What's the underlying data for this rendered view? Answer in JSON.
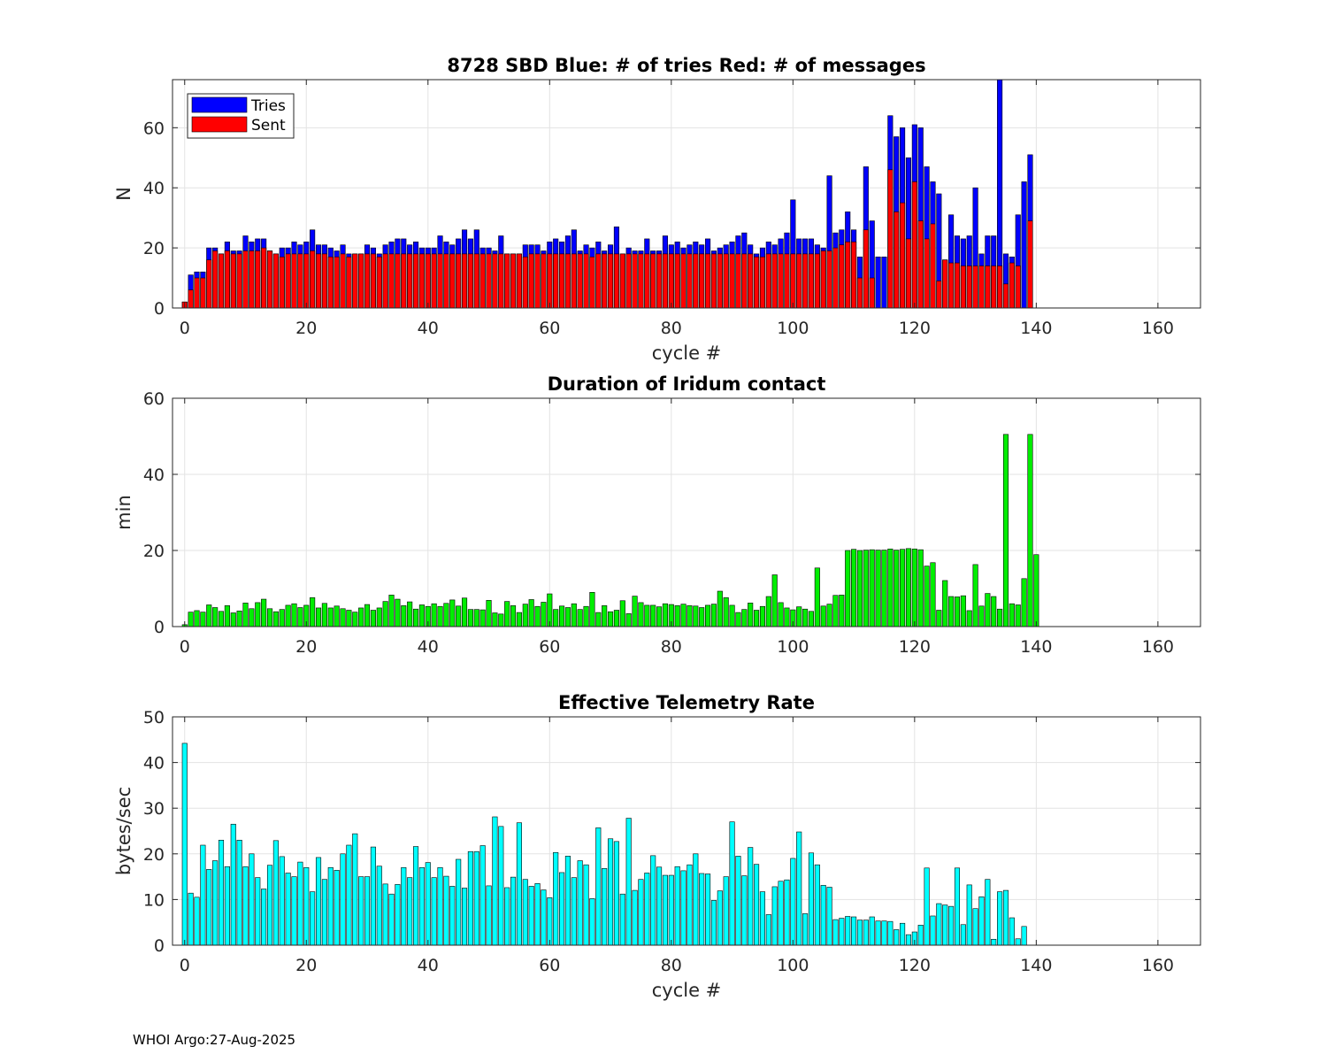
{
  "footer": "WHOI Argo:27-Aug-2025",
  "chart_data": [
    {
      "type": "bar",
      "title": "8728 SBD  Blue: # of tries   Red: # of messages",
      "xlabel": "cycle #",
      "ylabel": "N",
      "xlim": [
        -2,
        167
      ],
      "ylim": [
        0,
        76
      ],
      "xticks": [
        0,
        20,
        40,
        60,
        80,
        100,
        120,
        140,
        160
      ],
      "yticks": [
        0,
        20,
        40,
        60
      ],
      "grid": true,
      "legend": "top-left",
      "x_start": 0,
      "series": [
        {
          "name": "Tries",
          "color": "#0000ff",
          "values": [
            2,
            11,
            12,
            12,
            20,
            20,
            18,
            22,
            19,
            19,
            24,
            22,
            23,
            23,
            19,
            18,
            20,
            20,
            22,
            21,
            22,
            26,
            21,
            21,
            20,
            19,
            21,
            18,
            18,
            18,
            21,
            20,
            18,
            21,
            22,
            23,
            23,
            21,
            22,
            20,
            20,
            20,
            24,
            22,
            21,
            23,
            26,
            23,
            26,
            20,
            20,
            19,
            24,
            18,
            18,
            18,
            21,
            21,
            21,
            19,
            22,
            23,
            22,
            24,
            26,
            19,
            21,
            20,
            22,
            19,
            21,
            27,
            18,
            20,
            19,
            19,
            23,
            19,
            19,
            24,
            21,
            22,
            20,
            21,
            22,
            21,
            23,
            19,
            20,
            21,
            22,
            24,
            25,
            21,
            18,
            20,
            22,
            21,
            23,
            25,
            36,
            23,
            23,
            23,
            21,
            20,
            44,
            25,
            26,
            32,
            26,
            17,
            47,
            29,
            17,
            17,
            64,
            57,
            60,
            50,
            61,
            60,
            47,
            42,
            38,
            16,
            31,
            24,
            23,
            24,
            40,
            18,
            24,
            24,
            76,
            18,
            17,
            31,
            42,
            51
          ]
        },
        {
          "name": "Sent",
          "color": "#ff0000",
          "values": [
            2,
            6,
            10,
            10,
            16,
            19,
            18,
            19,
            18,
            18,
            19,
            19,
            19,
            20,
            19,
            18,
            17,
            18,
            18,
            18,
            18,
            19,
            18,
            18,
            17,
            17,
            18,
            17,
            18,
            18,
            18,
            18,
            17,
            18,
            18,
            18,
            18,
            18,
            18,
            18,
            18,
            18,
            18,
            18,
            18,
            18,
            18,
            18,
            18,
            18,
            18,
            18,
            18,
            18,
            18,
            18,
            17,
            18,
            18,
            18,
            18,
            18,
            18,
            18,
            18,
            18,
            18,
            17,
            18,
            18,
            18,
            18,
            18,
            18,
            18,
            18,
            18,
            18,
            18,
            18,
            18,
            18,
            18,
            18,
            18,
            18,
            18,
            18,
            18,
            18,
            18,
            18,
            18,
            18,
            17,
            17,
            18,
            18,
            18,
            18,
            18,
            18,
            18,
            18,
            18,
            19,
            19,
            20,
            21,
            22,
            22,
            10,
            26,
            10,
            0,
            0,
            46,
            32,
            35,
            23,
            42,
            29,
            23,
            28,
            9,
            16,
            15,
            15,
            14,
            14,
            14,
            14,
            14,
            14,
            14,
            8,
            15,
            14,
            0,
            29
          ]
        }
      ]
    },
    {
      "type": "bar",
      "title": "Duration of Iridum contact",
      "xlabel": "",
      "ylabel": "min",
      "xlim": [
        -2,
        167
      ],
      "ylim": [
        0,
        60
      ],
      "xticks": [
        0,
        20,
        40,
        60,
        80,
        100,
        120,
        140,
        160
      ],
      "yticks": [
        0,
        20,
        40,
        60
      ],
      "grid": true,
      "x_start": 0,
      "series": [
        {
          "color": "#00ee00",
          "values": [
            0.5,
            3.8,
            4.2,
            3.8,
            5.7,
            5.0,
            4.0,
            5.5,
            3.6,
            4.1,
            6.2,
            4.7,
            6.3,
            7.2,
            4.7,
            3.9,
            4.5,
            5.6,
            6.0,
            5.0,
            5.6,
            7.6,
            4.9,
            6.1,
            4.9,
            5.4,
            4.7,
            4.3,
            3.8,
            4.9,
            5.8,
            4.3,
            4.9,
            6.6,
            8.3,
            7.2,
            5.5,
            6.5,
            4.6,
            5.7,
            5.3,
            6.0,
            5.3,
            6.1,
            7.0,
            5.4,
            7.5,
            4.5,
            4.5,
            4.4,
            6.9,
            3.6,
            3.3,
            6.6,
            5.5,
            3.7,
            5.9,
            7.1,
            5.3,
            6.4,
            8.6,
            4.5,
            5.4,
            5.0,
            6.0,
            4.5,
            5.3,
            9.0,
            3.7,
            5.5,
            3.9,
            4.3,
            6.8,
            3.4,
            8.0,
            6.3,
            5.6,
            5.6,
            5.2,
            6.0,
            5.8,
            5.5,
            5.9,
            5.5,
            5.4,
            5.0,
            5.6,
            5.9,
            9.3,
            7.6,
            5.6,
            3.7,
            4.5,
            6.2,
            4.3,
            5.3,
            7.9,
            13.6,
            6.3,
            4.9,
            4.4,
            5.2,
            4.6,
            4.0,
            15.4,
            5.4,
            5.9,
            8.2,
            8.3,
            20.0,
            20.3,
            20.0,
            20.1,
            20.2,
            20.1,
            20.1,
            20.4,
            20.1,
            20.3,
            20.5,
            20.4,
            20.2,
            15.9,
            16.8,
            4.3,
            12.1,
            7.9,
            7.8,
            8.1,
            4.2,
            16.3,
            5.4,
            8.7,
            7.9,
            4.6,
            50.5,
            6.0,
            5.7,
            12.6,
            50.5,
            18.9
          ]
        }
      ]
    },
    {
      "type": "bar",
      "title": "Effective Telemetry Rate",
      "xlabel": "cycle #",
      "ylabel": "bytes/sec",
      "xlim": [
        -2,
        167
      ],
      "ylim": [
        0,
        50
      ],
      "xticks": [
        0,
        20,
        40,
        60,
        80,
        100,
        120,
        140,
        160
      ],
      "yticks": [
        0,
        10,
        20,
        30,
        40,
        50
      ],
      "grid": true,
      "x_start": 0,
      "series": [
        {
          "color": "#00ffff",
          "values": [
            44.2,
            11.4,
            10.5,
            21.9,
            16.6,
            18.5,
            23.0,
            17.2,
            26.5,
            23.0,
            17.2,
            20.0,
            14.8,
            12.3,
            17.5,
            22.9,
            19.4,
            15.8,
            15.0,
            18.2,
            17.0,
            11.7,
            19.2,
            14.4,
            17.0,
            16.4,
            20.0,
            21.9,
            24.4,
            15.0,
            15.0,
            21.5,
            17.3,
            13.4,
            11.2,
            13.3,
            17.0,
            14.8,
            21.6,
            17.0,
            18.1,
            14.8,
            17.0,
            15.1,
            12.9,
            18.8,
            12.5,
            20.5,
            20.5,
            21.8,
            13.0,
            28.1,
            26.0,
            12.6,
            14.9,
            26.8,
            14.4,
            12.9,
            13.5,
            12.1,
            10.4,
            20.3,
            15.9,
            19.5,
            14.8,
            18.5,
            17.6,
            10.2,
            25.7,
            16.8,
            23.3,
            22.7,
            11.2,
            27.8,
            12.0,
            14.4,
            15.8,
            19.6,
            17.1,
            15.3,
            15.3,
            17.2,
            16.3,
            17.6,
            20.0,
            15.7,
            15.6,
            9.8,
            11.9,
            15.0,
            27.0,
            19.5,
            15.2,
            21.4,
            17.7,
            11.7,
            6.7,
            12.8,
            14.0,
            14.3,
            19.0,
            24.8,
            6.9,
            20.2,
            17.6,
            13.1,
            12.7,
            5.6,
            5.9,
            6.3,
            6.2,
            5.5,
            5.5,
            6.2,
            5.3,
            5.3,
            5.2,
            3.4,
            4.8,
            2.3,
            2.9,
            4.4,
            16.9,
            6.4,
            9.1,
            8.8,
            8.5,
            16.9,
            4.5,
            13.2,
            8.0,
            10.6,
            14.4,
            1.3,
            11.7,
            12.0,
            6.0,
            1.4,
            4.1
          ]
        }
      ]
    }
  ]
}
